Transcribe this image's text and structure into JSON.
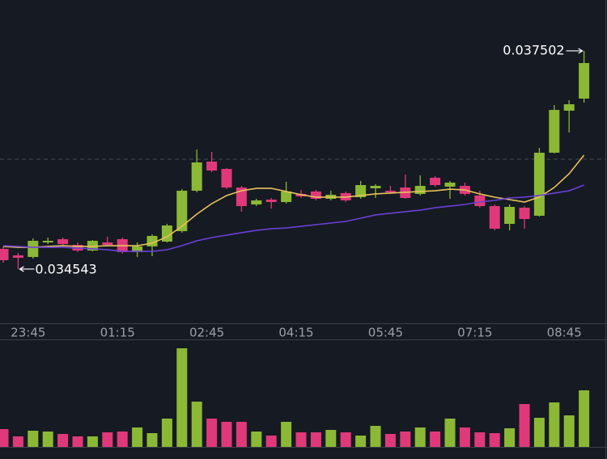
{
  "chart_data": {
    "type": "candlestick",
    "categories": [
      null,
      null,
      "23:45",
      null,
      null,
      null,
      null,
      null,
      "01:15",
      null,
      null,
      null,
      null,
      null,
      "02:45",
      null,
      null,
      null,
      null,
      null,
      "04:15",
      null,
      null,
      null,
      null,
      null,
      "05:45",
      null,
      null,
      null,
      null,
      null,
      "07:15",
      null,
      null,
      null,
      null,
      null,
      "08:45",
      null
    ],
    "open": [
      0.034817,
      0.034729,
      0.034707,
      0.034904,
      0.034948,
      0.034871,
      0.034794,
      0.034904,
      0.034948,
      0.034773,
      0.03485,
      0.034915,
      0.035057,
      0.035605,
      0.036,
      0.035901,
      0.035649,
      0.035419,
      0.035485,
      0.035452,
      0.035562,
      0.035595,
      0.035496,
      0.035573,
      0.035518,
      0.035638,
      0.035605,
      0.035649,
      0.035562,
      0.035781,
      0.03566,
      0.035671,
      0.03554,
      0.035397,
      0.035156,
      0.035375,
      0.035266,
      0.036121,
      0.036691,
      0.036855
    ],
    "high": [
      0.03485,
      0.034762,
      0.034959,
      0.03497,
      0.03497,
      0.034904,
      0.034937,
      0.034981,
      0.03497,
      0.034904,
      0.035014,
      0.035156,
      0.035627,
      0.036164,
      0.036132,
      0.035912,
      0.035671,
      0.035496,
      0.035507,
      0.035726,
      0.035616,
      0.035616,
      0.035605,
      0.035595,
      0.035737,
      0.035693,
      0.035671,
      0.035825,
      0.035814,
      0.035803,
      0.035737,
      0.035715,
      0.035605,
      0.035419,
      0.035419,
      0.035397,
      0.036186,
      0.036767,
      0.036833,
      0.037502
    ],
    "low": [
      0.03463,
      0.034543,
      0.034685,
      0.034882,
      0.03486,
      0.034773,
      0.034783,
      0.03485,
      0.034751,
      0.034707,
      0.034718,
      0.034904,
      0.035036,
      0.035584,
      0.035858,
      0.035627,
      0.035321,
      0.035397,
      0.035364,
      0.03543,
      0.035507,
      0.035474,
      0.035474,
      0.035452,
      0.035496,
      0.035507,
      0.035562,
      0.035496,
      0.03554,
      0.03566,
      0.035496,
      0.03554,
      0.035375,
      0.035068,
      0.035068,
      0.03509,
      0.035255,
      0.03611,
      0.036395,
      0.0368
    ],
    "close": [
      0.034663,
      0.034696,
      0.034926,
      0.034926,
      0.034882,
      0.034794,
      0.034926,
      0.034871,
      0.034773,
      0.03485,
      0.034992,
      0.035134,
      0.035605,
      0.035989,
      0.035879,
      0.035649,
      0.035397,
      0.035474,
      0.035452,
      0.035595,
      0.035529,
      0.035496,
      0.035551,
      0.035474,
      0.035682,
      0.035671,
      0.035584,
      0.035507,
      0.035671,
      0.035682,
      0.035715,
      0.035562,
      0.035397,
      0.03509,
      0.035386,
      0.035222,
      0.036121,
      0.036701,
      0.036778,
      0.037337
    ],
    "volume": [
      22,
      13,
      20,
      19,
      16,
      13,
      13,
      18,
      19,
      24,
      17,
      35,
      122,
      56,
      35,
      31,
      31,
      19,
      14,
      31,
      18,
      18,
      21,
      18,
      14,
      26,
      16,
      19,
      24,
      19,
      35,
      24,
      18,
      17,
      23,
      53,
      36,
      55,
      39,
      70
    ],
    "series": [
      {
        "color": "#e8c25c",
        "values": [
          0.03485,
          0.034838,
          0.034838,
          0.03485,
          0.03486,
          0.03485,
          0.03485,
          0.03486,
          0.03486,
          0.03486,
          0.034893,
          0.034981,
          0.035123,
          0.035288,
          0.03543,
          0.03554,
          0.035605,
          0.035638,
          0.035638,
          0.035595,
          0.035551,
          0.035518,
          0.035518,
          0.035518,
          0.03554,
          0.035562,
          0.035573,
          0.035584,
          0.035595,
          0.035605,
          0.035627,
          0.035616,
          0.035562,
          0.035518,
          0.035485,
          0.035452,
          0.035518,
          0.035649,
          0.035836,
          0.036088
        ]
      },
      {
        "color": "#6b3fd6",
        "values": [
          0.03486,
          0.03485,
          0.034838,
          0.034838,
          0.034838,
          0.034827,
          0.034817,
          0.034805,
          0.034783,
          0.034783,
          0.034783,
          0.034805,
          0.03486,
          0.034926,
          0.03497,
          0.035003,
          0.035036,
          0.035068,
          0.03509,
          0.035101,
          0.035123,
          0.035145,
          0.035167,
          0.035189,
          0.035233,
          0.035277,
          0.035299,
          0.035321,
          0.035342,
          0.035375,
          0.035397,
          0.035419,
          0.035452,
          0.035474,
          0.035507,
          0.035518,
          0.03554,
          0.035573,
          0.035605,
          0.035682
        ]
      }
    ],
    "up_color": "#8bb935",
    "down_color": "#e0397a",
    "ylim": [
      0.033808,
      0.038192
    ],
    "volume_lim": [
      0,
      122
    ],
    "reference_line": 0.036033,
    "high_label": "0.037502",
    "low_label": "0.034543"
  }
}
